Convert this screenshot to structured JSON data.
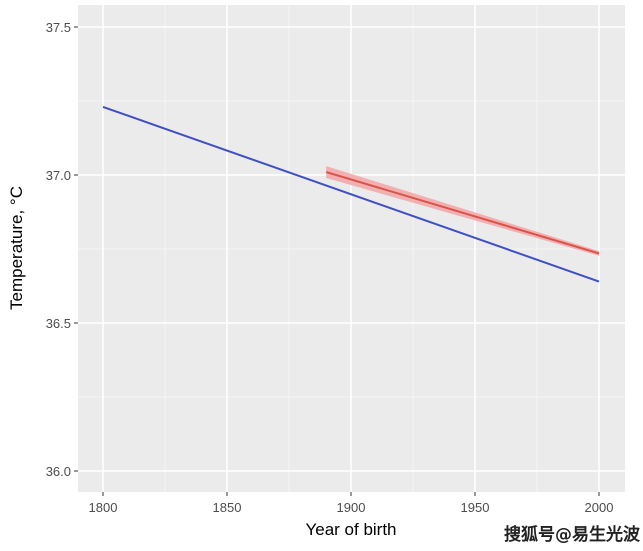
{
  "chart_data": {
    "type": "line",
    "title": "",
    "xlabel": "Year of birth",
    "ylabel": "Temperature, °C",
    "xlim": [
      1790,
      2010.5
    ],
    "ylim": [
      35.93,
      37.574
    ],
    "xticks": [
      1800,
      1850,
      1900,
      1950,
      2000
    ],
    "yticks": [
      36.0,
      36.5,
      37.0,
      37.5
    ],
    "xtick_labels": [
      "1800",
      "1850",
      "1900",
      "1950",
      "2000"
    ],
    "ytick_labels": [
      "36.0",
      "36.5",
      "37.0",
      "37.5"
    ],
    "grid": true,
    "series": [
      {
        "name": "blue",
        "color": "#3f4fc4",
        "x": [
          1800,
          2000
        ],
        "y": [
          37.23,
          36.64
        ]
      },
      {
        "name": "red",
        "color": "#d9534a",
        "band_color": "#f4a0a0",
        "x": [
          1890,
          2000
        ],
        "y": [
          37.01,
          36.735
        ],
        "ci_halfwidth": [
          0.02,
          0.008
        ]
      }
    ]
  },
  "watermark": "搜狐号@易生光波"
}
